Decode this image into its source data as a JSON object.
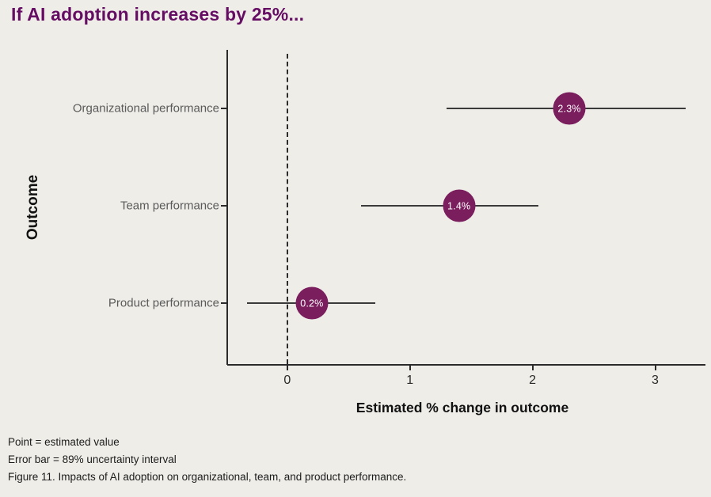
{
  "page": {
    "background_color": "#eeede8",
    "title": "If AI adoption increases by 25%...",
    "title_color": "#650c63"
  },
  "chart_data": {
    "type": "scatter",
    "subtype": "dot-plot-with-horizontal-error-bars",
    "title": "If AI adoption increases by 25%...",
    "xlabel": "Estimated % change in outcome",
    "ylabel": "Outcome",
    "xlim": [
      -0.49,
      3.41
    ],
    "x_ticks": [
      0,
      1,
      2,
      3
    ],
    "grid": false,
    "legend": false,
    "zero_reference_line": {
      "x": 0,
      "style": "dashed"
    },
    "categories": [
      "Organizational performance",
      "Team performance",
      "Product performance"
    ],
    "points": [
      {
        "label": "Organizational performance",
        "estimate": 2.3,
        "display": "2.3%",
        "interval_low": 1.3,
        "interval_high": 3.25
      },
      {
        "label": "Team performance",
        "estimate": 1.4,
        "display": "1.4%",
        "interval_low": 0.6,
        "interval_high": 2.05
      },
      {
        "label": "Product performance",
        "estimate": 0.2,
        "display": "0.2%",
        "interval_low": -0.33,
        "interval_high": 0.72
      }
    ],
    "interval_meaning": "89% uncertainty interval",
    "colors": {
      "point_fill": "#7a1e5e",
      "point_label": "#ffffff",
      "error_bar": "#3a3a3a",
      "axis": "#2b2b2b",
      "category_label": "#5a5a5a"
    }
  },
  "footnotes": {
    "line1": "Point = estimated value",
    "line2": "Error bar = 89% uncertainty interval",
    "line3": "Figure 11. Impacts of AI adoption on organizational, team, and product performance."
  }
}
